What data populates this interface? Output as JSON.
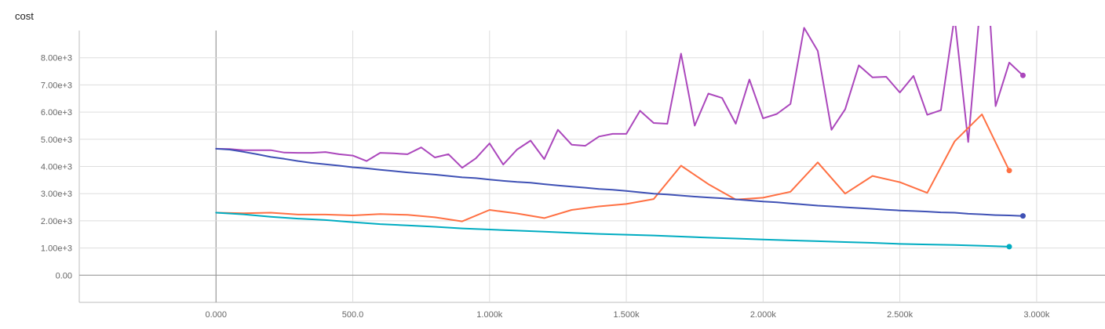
{
  "chart_data": {
    "type": "line",
    "title": "cost",
    "xlabel": "",
    "ylabel": "",
    "xlim": [
      -500,
      3250
    ],
    "ylim": [
      -1000,
      9000
    ],
    "x_ticks": [
      0,
      500,
      1000,
      1500,
      2000,
      2500,
      3000
    ],
    "x_tick_labels": [
      "0.000",
      "500.0",
      "1.000k",
      "1.500k",
      "2.000k",
      "2.500k",
      "3.000k"
    ],
    "y_ticks": [
      0,
      1000,
      2000,
      3000,
      4000,
      5000,
      6000,
      7000,
      8000
    ],
    "y_tick_labels": [
      "0.00",
      "1.00e+3",
      "2.00e+3",
      "3.00e+3",
      "4.00e+3",
      "5.00e+3",
      "6.00e+3",
      "7.00e+3",
      "8.00e+3"
    ],
    "grid": true,
    "series": [
      {
        "color": "#ab47bc",
        "points": [
          [
            0,
            4650
          ],
          [
            50,
            4640
          ],
          [
            100,
            4600
          ],
          [
            150,
            4600
          ],
          [
            200,
            4600
          ],
          [
            250,
            4510
          ],
          [
            300,
            4500
          ],
          [
            350,
            4500
          ],
          [
            400,
            4530
          ],
          [
            450,
            4450
          ],
          [
            500,
            4400
          ],
          [
            550,
            4200
          ],
          [
            600,
            4500
          ],
          [
            650,
            4480
          ],
          [
            700,
            4450
          ],
          [
            750,
            4700
          ],
          [
            800,
            4330
          ],
          [
            850,
            4450
          ],
          [
            900,
            3950
          ],
          [
            950,
            4300
          ],
          [
            1000,
            4850
          ],
          [
            1050,
            4070
          ],
          [
            1100,
            4620
          ],
          [
            1150,
            4950
          ],
          [
            1200,
            4270
          ],
          [
            1250,
            5350
          ],
          [
            1300,
            4800
          ],
          [
            1350,
            4760
          ],
          [
            1400,
            5100
          ],
          [
            1450,
            5200
          ],
          [
            1500,
            5200
          ],
          [
            1550,
            6050
          ],
          [
            1600,
            5600
          ],
          [
            1650,
            5570
          ],
          [
            1700,
            8150
          ],
          [
            1750,
            5500
          ],
          [
            1800,
            6680
          ],
          [
            1850,
            6520
          ],
          [
            1900,
            5570
          ],
          [
            1950,
            7200
          ],
          [
            2000,
            5770
          ],
          [
            2050,
            5930
          ],
          [
            2100,
            6300
          ],
          [
            2150,
            9100
          ],
          [
            2200,
            8250
          ],
          [
            2250,
            5350
          ],
          [
            2300,
            6100
          ],
          [
            2350,
            7720
          ],
          [
            2400,
            7280
          ],
          [
            2450,
            7300
          ],
          [
            2500,
            6720
          ],
          [
            2550,
            7330
          ],
          [
            2600,
            5900
          ],
          [
            2650,
            6070
          ],
          [
            2700,
            9500
          ],
          [
            2750,
            4900
          ],
          [
            2790,
            9500
          ],
          [
            2830,
            9400
          ],
          [
            2850,
            6220
          ],
          [
            2900,
            7820
          ],
          [
            2950,
            7350
          ]
        ]
      },
      {
        "color": "#ff7043",
        "points": [
          [
            0,
            2300
          ],
          [
            100,
            2280
          ],
          [
            200,
            2300
          ],
          [
            300,
            2230
          ],
          [
            400,
            2230
          ],
          [
            500,
            2200
          ],
          [
            600,
            2250
          ],
          [
            700,
            2220
          ],
          [
            800,
            2130
          ],
          [
            900,
            1980
          ],
          [
            1000,
            2400
          ],
          [
            1100,
            2270
          ],
          [
            1200,
            2100
          ],
          [
            1300,
            2400
          ],
          [
            1400,
            2530
          ],
          [
            1500,
            2620
          ],
          [
            1600,
            2800
          ],
          [
            1700,
            4030
          ],
          [
            1800,
            3350
          ],
          [
            1900,
            2780
          ],
          [
            2000,
            2850
          ],
          [
            2100,
            3070
          ],
          [
            2200,
            4150
          ],
          [
            2300,
            3000
          ],
          [
            2400,
            3650
          ],
          [
            2500,
            3420
          ],
          [
            2600,
            3030
          ],
          [
            2700,
            4920
          ],
          [
            2800,
            5920
          ],
          [
            2900,
            3850
          ]
        ]
      },
      {
        "color": "#3f51b5",
        "points": [
          [
            0,
            4650
          ],
          [
            50,
            4620
          ],
          [
            100,
            4540
          ],
          [
            150,
            4450
          ],
          [
            200,
            4350
          ],
          [
            250,
            4280
          ],
          [
            300,
            4200
          ],
          [
            350,
            4130
          ],
          [
            400,
            4080
          ],
          [
            450,
            4030
          ],
          [
            500,
            3970
          ],
          [
            550,
            3930
          ],
          [
            600,
            3880
          ],
          [
            650,
            3830
          ],
          [
            700,
            3780
          ],
          [
            750,
            3740
          ],
          [
            800,
            3700
          ],
          [
            850,
            3650
          ],
          [
            900,
            3600
          ],
          [
            950,
            3570
          ],
          [
            1000,
            3520
          ],
          [
            1050,
            3470
          ],
          [
            1100,
            3430
          ],
          [
            1150,
            3400
          ],
          [
            1200,
            3350
          ],
          [
            1250,
            3300
          ],
          [
            1300,
            3260
          ],
          [
            1350,
            3220
          ],
          [
            1400,
            3170
          ],
          [
            1450,
            3140
          ],
          [
            1500,
            3100
          ],
          [
            1550,
            3050
          ],
          [
            1600,
            3000
          ],
          [
            1650,
            2970
          ],
          [
            1700,
            2930
          ],
          [
            1750,
            2890
          ],
          [
            1800,
            2860
          ],
          [
            1850,
            2830
          ],
          [
            1900,
            2790
          ],
          [
            1950,
            2750
          ],
          [
            2000,
            2710
          ],
          [
            2050,
            2680
          ],
          [
            2100,
            2640
          ],
          [
            2150,
            2600
          ],
          [
            2200,
            2560
          ],
          [
            2250,
            2530
          ],
          [
            2300,
            2500
          ],
          [
            2350,
            2470
          ],
          [
            2400,
            2440
          ],
          [
            2450,
            2410
          ],
          [
            2500,
            2380
          ],
          [
            2550,
            2360
          ],
          [
            2600,
            2340
          ],
          [
            2650,
            2310
          ],
          [
            2700,
            2300
          ],
          [
            2750,
            2260
          ],
          [
            2800,
            2240
          ],
          [
            2850,
            2210
          ],
          [
            2900,
            2200
          ],
          [
            2950,
            2180
          ]
        ]
      },
      {
        "color": "#00acc1",
        "points": [
          [
            0,
            2300
          ],
          [
            100,
            2240
          ],
          [
            200,
            2150
          ],
          [
            300,
            2080
          ],
          [
            400,
            2030
          ],
          [
            500,
            1950
          ],
          [
            600,
            1880
          ],
          [
            700,
            1830
          ],
          [
            800,
            1780
          ],
          [
            900,
            1720
          ],
          [
            1000,
            1680
          ],
          [
            1100,
            1640
          ],
          [
            1200,
            1600
          ],
          [
            1300,
            1560
          ],
          [
            1400,
            1520
          ],
          [
            1500,
            1490
          ],
          [
            1600,
            1460
          ],
          [
            1700,
            1420
          ],
          [
            1800,
            1380
          ],
          [
            1900,
            1350
          ],
          [
            2000,
            1310
          ],
          [
            2100,
            1280
          ],
          [
            2200,
            1250
          ],
          [
            2300,
            1220
          ],
          [
            2400,
            1190
          ],
          [
            2500,
            1150
          ],
          [
            2600,
            1130
          ],
          [
            2700,
            1110
          ],
          [
            2800,
            1080
          ],
          [
            2900,
            1050
          ]
        ]
      }
    ]
  }
}
